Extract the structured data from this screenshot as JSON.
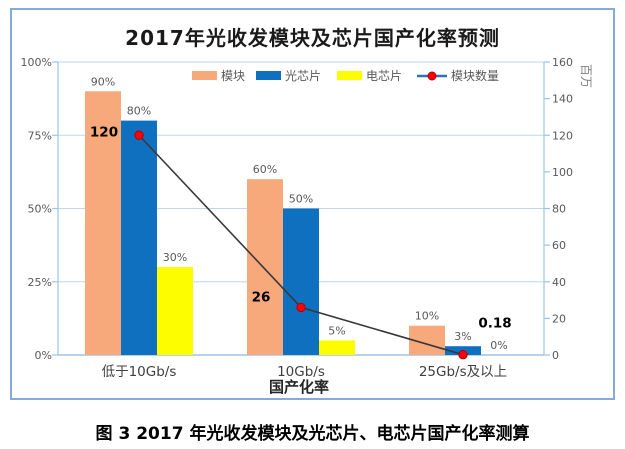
{
  "figure": {
    "caption": "图 3 2017 年光收发模块及光芯片、电芯片国产化率测算"
  },
  "chart_data": {
    "type": "bar",
    "title": "2017年光收发模块及芯片国产化率预测",
    "categories": [
      "低于10Gb/s",
      "10Gb/s",
      "25Gb/s及以上"
    ],
    "xlabel": "国产化率",
    "left_axis": {
      "unit": "percent",
      "ticks": [
        "100%",
        "75%",
        "50%",
        "25%",
        "0%"
      ],
      "min": 0,
      "max": 100
    },
    "right_axis": {
      "label": "百万",
      "ticks": [
        "160",
        "140",
        "120",
        "100",
        "80",
        "60",
        "40",
        "20",
        "0"
      ],
      "min": 0,
      "max": 160
    },
    "grid": "horizontal gridlines every 25%",
    "legend_position": "top-inside",
    "legend": [
      "模块",
      "光芯片",
      "电芯片",
      "模块数量"
    ],
    "series": [
      {
        "name": "模块",
        "type": "bar",
        "axis": "left",
        "color": "#F7A97C",
        "values_pct": [
          90,
          60,
          10
        ],
        "labels": [
          "90%",
          "60%",
          "10%"
        ]
      },
      {
        "name": "光芯片",
        "type": "bar",
        "axis": "left",
        "color": "#1070C0",
        "values_pct": [
          80,
          50,
          3
        ],
        "labels": [
          "80%",
          "50%",
          "3%"
        ]
      },
      {
        "name": "电芯片",
        "type": "bar",
        "axis": "left",
        "color": "#FDFD00",
        "values_pct": [
          30,
          5,
          0
        ],
        "labels": [
          "30%",
          "5%",
          "0%"
        ]
      },
      {
        "name": "模块数量",
        "type": "line",
        "axis": "right",
        "line_color": "#3B3838",
        "marker_color": "#FF0000",
        "marker_edge": "#B00000",
        "legend_line_color": "#2E74B5",
        "values_millions": [
          120,
          26,
          0.18
        ],
        "labels": [
          "120",
          "26",
          "0.18"
        ],
        "label_offsets": [
          [
            -35,
            1
          ],
          [
            -40,
            -6
          ],
          [
            32,
            -27
          ]
        ]
      }
    ],
    "colors": {
      "frame_border": "#84ABD9",
      "gridline": "#BDD7EE",
      "axis_line": "#9DC3E6",
      "tick_text": "#595959",
      "bar_label_text": "#595959",
      "line_label_text": "#000000",
      "category_text": "#3F3F3F",
      "xlabel_text": "#262626",
      "right_axis_unit_text": "#7F7F7F"
    }
  }
}
